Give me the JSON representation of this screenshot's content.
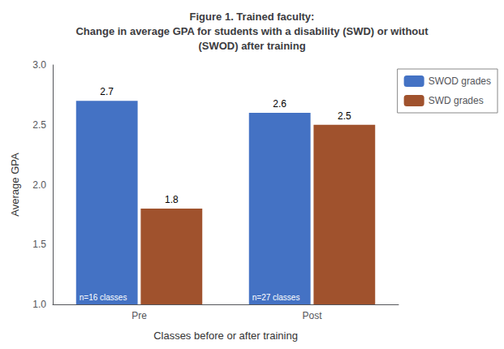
{
  "chart_data": {
    "type": "bar",
    "title": "Figure 1. Trained faculty:\nChange in average GPA for students with a disability (SWD) or without\n(SWOD) after training",
    "xlabel": "Classes before or after training",
    "ylabel": "Average GPA",
    "categories": [
      "Pre",
      "Post"
    ],
    "series": [
      {
        "name": "SWOD grades",
        "color": "#4472C4",
        "values": [
          2.7,
          2.6
        ],
        "annotations": [
          "n=16 classes",
          "n=27 classes"
        ]
      },
      {
        "name": "SWD grades",
        "color": "#A0522D",
        "values": [
          1.8,
          2.5
        ]
      }
    ],
    "ylim": [
      1.0,
      3.0
    ],
    "yticks": [
      {
        "value": 1.0,
        "label": "1.0"
      },
      1.5,
      {
        "value": 2.0,
        "label": "2.0"
      },
      2.5,
      {
        "value": 3.0,
        "label": "3.0"
      }
    ],
    "data_labels": true,
    "legend": "upper right",
    "grid": false
  }
}
